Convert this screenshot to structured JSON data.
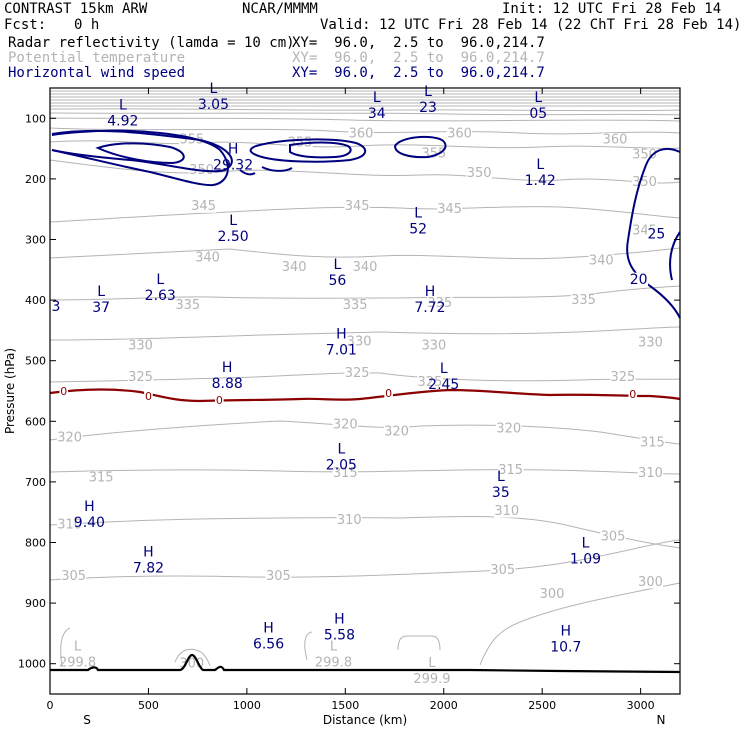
{
  "header": {
    "model": "CONTRAST 15km ARW",
    "org": "NCAR/MMMM",
    "init": "Init: 12 UTC Fri 28 Feb 14",
    "fcst_label": "Fcst:",
    "fcst_value": "0 h",
    "valid": "Valid: 12 UTC Fri 28 Feb 14 (22 ChT Fri 28 Feb 14)",
    "fields": [
      {
        "name": "Radar reflectivity (lamda = 10 cm)",
        "xy": "XY=  96.0,  2.5 to  96.0,214.7",
        "color": "#000000"
      },
      {
        "name": "Potential temperature",
        "xy": "XY=  96.0,  2.5 to  96.0,214.7",
        "color": "#b4b4b4"
      },
      {
        "name": "Horizontal wind speed",
        "xy": "XY=  96.0,  2.5 to  96.0,214.7",
        "color": "#00007f"
      }
    ]
  },
  "chart_data": {
    "type": "contour cross-section",
    "xlabel": "Distance (km)",
    "ylabel": "Pressure (hPa)",
    "xlim": [
      0,
      3200
    ],
    "ylim": [
      1050,
      50
    ],
    "x_ticks": [
      0,
      500,
      1000,
      1500,
      2000,
      2500,
      3000
    ],
    "y_ticks": [
      100,
      200,
      300,
      400,
      500,
      600,
      700,
      800,
      900,
      1000
    ],
    "endpoint_labels": [
      "S",
      "N"
    ],
    "colors": {
      "theta": "#b4b4b4",
      "wind": "#00007f",
      "zero_line": "#8b0000",
      "terrain": "#000000"
    },
    "theta_labels": [
      {
        "x": 720,
        "p": 135,
        "text": "355"
      },
      {
        "x": 1270,
        "p": 140,
        "text": "355"
      },
      {
        "x": 1580,
        "p": 125,
        "text": "360"
      },
      {
        "x": 2080,
        "p": 125,
        "text": "360"
      },
      {
        "x": 2870,
        "p": 135,
        "text": "360"
      },
      {
        "x": 3020,
        "p": 160,
        "text": "350"
      },
      {
        "x": 1950,
        "p": 158,
        "text": "355"
      },
      {
        "x": 770,
        "p": 185,
        "text": "350"
      },
      {
        "x": 2180,
        "p": 190,
        "text": "350"
      },
      {
        "x": 3020,
        "p": 205,
        "text": "350"
      },
      {
        "x": 780,
        "p": 245,
        "text": "345"
      },
      {
        "x": 1560,
        "p": 245,
        "text": "345"
      },
      {
        "x": 2030,
        "p": 250,
        "text": "345"
      },
      {
        "x": 3020,
        "p": 285,
        "text": "345"
      },
      {
        "x": 800,
        "p": 330,
        "text": "340"
      },
      {
        "x": 1240,
        "p": 345,
        "text": "340"
      },
      {
        "x": 1600,
        "p": 345,
        "text": "340"
      },
      {
        "x": 2800,
        "p": 335,
        "text": "340"
      },
      {
        "x": 700,
        "p": 408,
        "text": "335"
      },
      {
        "x": 1550,
        "p": 408,
        "text": "335"
      },
      {
        "x": 1980,
        "p": 405,
        "text": "335"
      },
      {
        "x": 2710,
        "p": 400,
        "text": "335"
      },
      {
        "x": 460,
        "p": 475,
        "text": "330"
      },
      {
        "x": 1570,
        "p": 468,
        "text": "330"
      },
      {
        "x": 1950,
        "p": 475,
        "text": "330"
      },
      {
        "x": 3050,
        "p": 470,
        "text": "330"
      },
      {
        "x": 460,
        "p": 527,
        "text": "325"
      },
      {
        "x": 1560,
        "p": 520,
        "text": "325"
      },
      {
        "x": 1930,
        "p": 535,
        "text": "325"
      },
      {
        "x": 2910,
        "p": 527,
        "text": "325"
      },
      {
        "x": 100,
        "p": 627,
        "text": "320"
      },
      {
        "x": 1500,
        "p": 605,
        "text": "320"
      },
      {
        "x": 1760,
        "p": 617,
        "text": "320"
      },
      {
        "x": 2330,
        "p": 612,
        "text": "320"
      },
      {
        "x": 3060,
        "p": 635,
        "text": "315"
      },
      {
        "x": 260,
        "p": 693,
        "text": "315"
      },
      {
        "x": 1500,
        "p": 685,
        "text": "315"
      },
      {
        "x": 2340,
        "p": 680,
        "text": "315"
      },
      {
        "x": 3050,
        "p": 685,
        "text": "310"
      },
      {
        "x": 100,
        "p": 770,
        "text": "310"
      },
      {
        "x": 1520,
        "p": 763,
        "text": "310"
      },
      {
        "x": 2320,
        "p": 748,
        "text": "310"
      },
      {
        "x": 2860,
        "p": 790,
        "text": "305"
      },
      {
        "x": 120,
        "p": 855,
        "text": "305"
      },
      {
        "x": 1160,
        "p": 855,
        "text": "305"
      },
      {
        "x": 2300,
        "p": 845,
        "text": "305"
      },
      {
        "x": 3050,
        "p": 865,
        "text": "300"
      },
      {
        "x": 2550,
        "p": 885,
        "text": "300"
      },
      {
        "x": 720,
        "p": 1000,
        "text": "300"
      }
    ],
    "extrema": [
      {
        "kind": "L",
        "x": 830,
        "p": 65,
        "value": "3.05"
      },
      {
        "kind": "L",
        "x": 370,
        "p": 92,
        "value": "4.92"
      },
      {
        "kind": "L",
        "x": 1660,
        "p": 80,
        "value": "34"
      },
      {
        "kind": "L",
        "x": 1920,
        "p": 70,
        "value": "23"
      },
      {
        "kind": "L",
        "x": 2480,
        "p": 80,
        "value": "05"
      },
      {
        "kind": "H",
        "x": 930,
        "p": 165,
        "value": "29.32"
      },
      {
        "kind": "L",
        "x": 2490,
        "p": 190,
        "value": "1.42"
      },
      {
        "kind": "L",
        "x": 930,
        "p": 283,
        "value": "2.50"
      },
      {
        "kind": "L",
        "x": 1870,
        "p": 270,
        "value": "52"
      },
      {
        "kind": "L",
        "x": 1460,
        "p": 355,
        "value": "56"
      },
      {
        "kind": "L",
        "x": 560,
        "p": 380,
        "value": "2.63"
      },
      {
        "kind": "L",
        "x": 260,
        "p": 400,
        "value": "37"
      },
      {
        "kind": "H",
        "x": 1930,
        "p": 400,
        "value": "7.72"
      },
      {
        "kind": "H",
        "x": 1480,
        "p": 470,
        "value": "7.01"
      },
      {
        "kind": "H",
        "x": 900,
        "p": 525,
        "value": "8.88"
      },
      {
        "kind": "L",
        "x": 2000,
        "p": 527,
        "value": "2.45"
      },
      {
        "kind": "L",
        "x": 1480,
        "p": 660,
        "value": "2.05"
      },
      {
        "kind": "L",
        "x": 2290,
        "p": 705,
        "value": "35"
      },
      {
        "kind": "H",
        "x": 200,
        "p": 755,
        "value": "9.40"
      },
      {
        "kind": "L",
        "x": 2720,
        "p": 815,
        "value": "1.09"
      },
      {
        "kind": "H",
        "x": 500,
        "p": 830,
        "value": "7.82"
      },
      {
        "kind": "H",
        "x": 1470,
        "p": 940,
        "value": "5.58"
      },
      {
        "kind": "H",
        "x": 1110,
        "p": 955,
        "value": "6.56"
      },
      {
        "kind": "H",
        "x": 2620,
        "p": 960,
        "value": "10.7"
      }
    ],
    "surface_lows": [
      {
        "x": 140,
        "p": 985,
        "value": "299.8"
      },
      {
        "x": 1440,
        "p": 985,
        "value": "299.8"
      },
      {
        "x": 1940,
        "p": 1012,
        "value": "299.9"
      }
    ],
    "wind_labels": [
      {
        "x": 3080,
        "p": 290,
        "value": "25"
      },
      {
        "x": 2990,
        "p": 365,
        "value": "20"
      }
    ],
    "zero_labels": [
      {
        "x": 70,
        "p": 550,
        "value": "0"
      },
      {
        "x": 500,
        "p": 558,
        "value": "0"
      },
      {
        "x": 860,
        "p": 565,
        "value": "0"
      },
      {
        "x": 1720,
        "p": 553,
        "value": "0"
      },
      {
        "x": 2960,
        "p": 555,
        "value": "0"
      }
    ],
    "edge_fragment": {
      "x": 30,
      "p": 410,
      "value": "3"
    }
  }
}
